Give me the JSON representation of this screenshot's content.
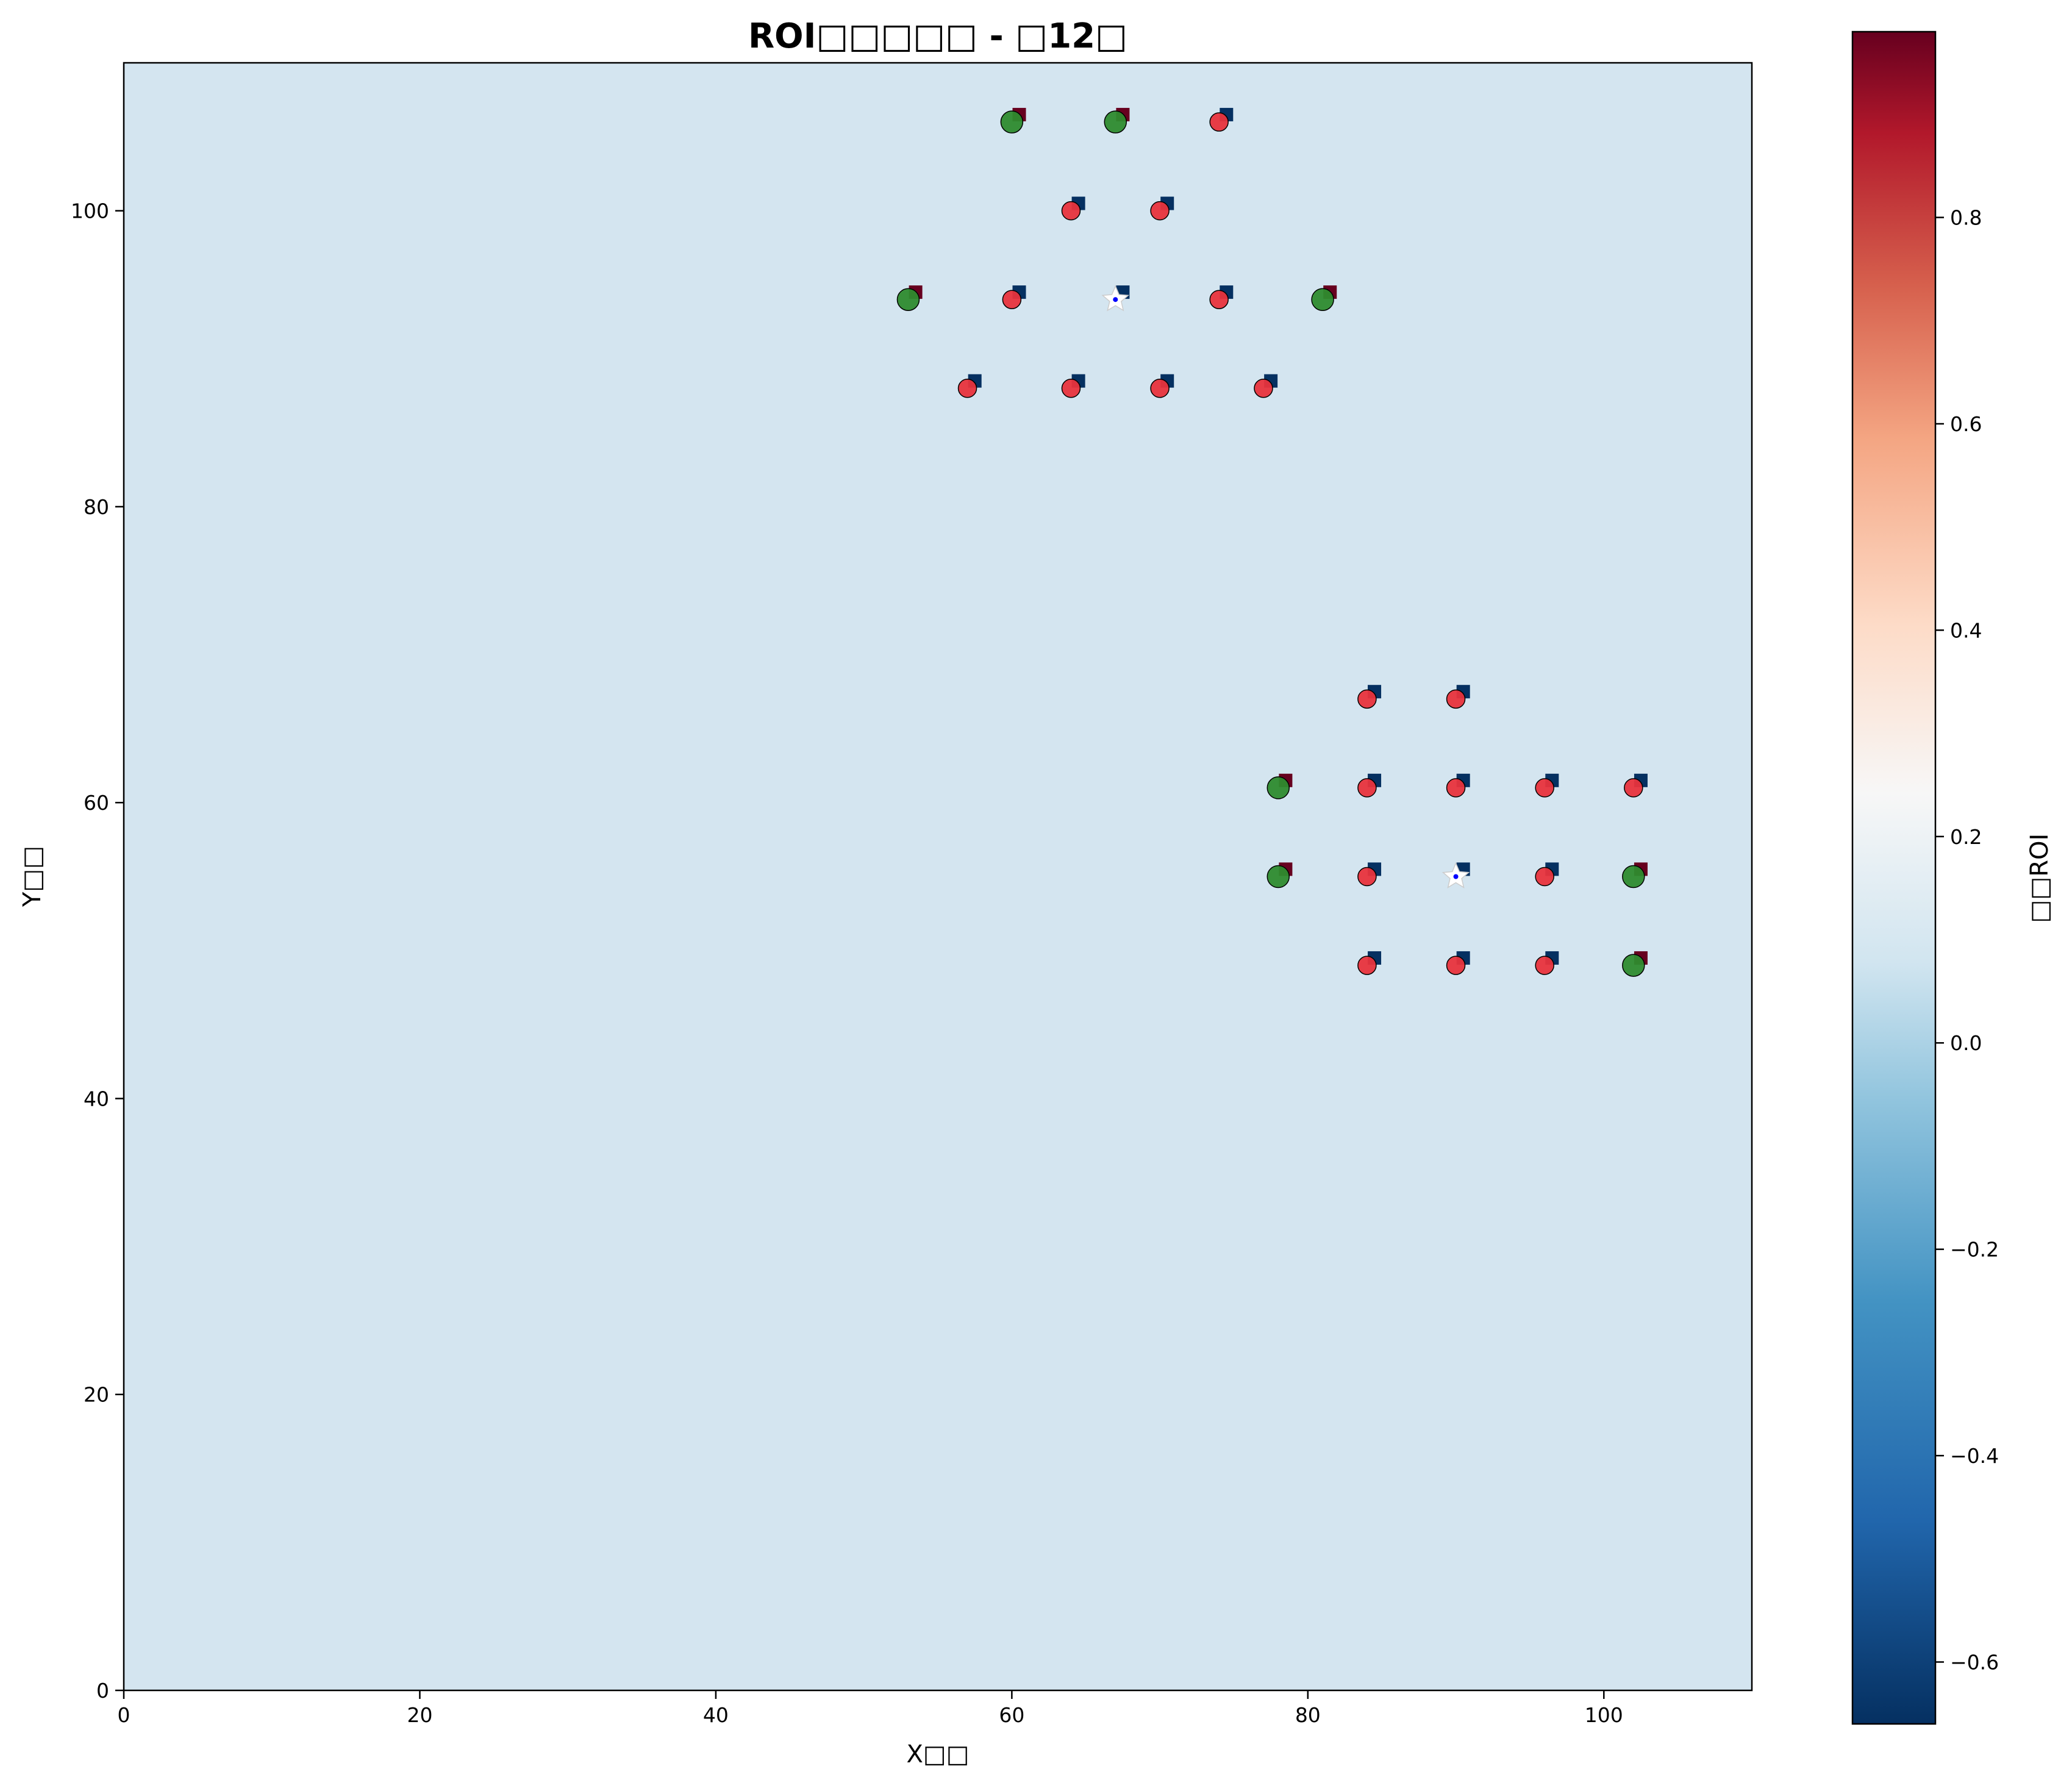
{
  "chart_data": {
    "type": "scatter",
    "title": "ROI□□□□□ - □12□",
    "xlabel": "X□□",
    "ylabel": "Y□□",
    "xlim": [
      0,
      110
    ],
    "ylim": [
      0,
      110
    ],
    "xticks": [
      "0",
      "20",
      "40",
      "60",
      "80",
      "100"
    ],
    "yticks": [
      "0",
      "20",
      "40",
      "60",
      "80",
      "100"
    ],
    "grid": false,
    "background_value": 0.0,
    "colorbar": {
      "label": "□□ROI",
      "range": [
        -0.66,
        0.98
      ],
      "ticks": [
        "−0.6",
        "−0.4",
        "−0.2",
        "0.0",
        "0.2",
        "0.4",
        "0.6",
        "0.8"
      ],
      "tick_values": [
        -0.6,
        -0.4,
        -0.2,
        0.0,
        0.2,
        0.4,
        0.6,
        0.8
      ],
      "colormap": "RdBu_r"
    },
    "colors": {
      "red_marker": "#e8333c",
      "green_marker": "#2e8b2e",
      "square_high_roi": "#67001f",
      "square_low_roi": "#053061",
      "star_fill": "#ffffff",
      "star_center": "#0000ff",
      "background": "#d4e5f0"
    },
    "series": [
      {
        "marker": "circle-red",
        "points": [
          [
            74,
            106
          ],
          [
            64,
            100
          ],
          [
            70,
            100
          ],
          [
            60,
            94
          ],
          [
            74,
            94
          ],
          [
            57,
            88
          ],
          [
            64,
            88
          ],
          [
            70,
            88
          ],
          [
            77,
            88
          ],
          [
            84,
            67
          ],
          [
            90,
            67
          ],
          [
            84,
            61
          ],
          [
            90,
            61
          ],
          [
            96,
            61
          ],
          [
            102,
            61
          ],
          [
            84,
            55
          ],
          [
            96,
            55
          ],
          [
            84,
            49
          ],
          [
            90,
            49
          ],
          [
            96,
            49
          ]
        ]
      },
      {
        "marker": "circle-green",
        "points": [
          [
            60,
            106
          ],
          [
            67,
            106
          ],
          [
            53,
            94
          ],
          [
            81,
            94
          ],
          [
            78,
            61
          ],
          [
            78,
            55
          ],
          [
            102,
            55
          ],
          [
            102,
            49
          ]
        ]
      },
      {
        "marker": "star",
        "points": [
          [
            67,
            94
          ],
          [
            90,
            55
          ]
        ]
      },
      {
        "marker": "square",
        "points": [
          {
            "x": 60.5,
            "y": 106.5,
            "roi": 0.98
          },
          {
            "x": 67.5,
            "y": 106.5,
            "roi": 0.98
          },
          {
            "x": 74.5,
            "y": 106.5,
            "roi": -0.66
          },
          {
            "x": 64.5,
            "y": 100.5,
            "roi": -0.66
          },
          {
            "x": 70.5,
            "y": 100.5,
            "roi": -0.66
          },
          {
            "x": 53.5,
            "y": 94.5,
            "roi": 0.98
          },
          {
            "x": 60.5,
            "y": 94.5,
            "roi": -0.66
          },
          {
            "x": 67.5,
            "y": 94.5,
            "roi": -0.66
          },
          {
            "x": 74.5,
            "y": 94.5,
            "roi": -0.66
          },
          {
            "x": 81.5,
            "y": 94.5,
            "roi": 0.98
          },
          {
            "x": 57.5,
            "y": 88.5,
            "roi": -0.66
          },
          {
            "x": 64.5,
            "y": 88.5,
            "roi": -0.66
          },
          {
            "x": 70.5,
            "y": 88.5,
            "roi": -0.66
          },
          {
            "x": 77.5,
            "y": 88.5,
            "roi": -0.66
          },
          {
            "x": 84.5,
            "y": 67.5,
            "roi": -0.66
          },
          {
            "x": 90.5,
            "y": 67.5,
            "roi": -0.66
          },
          {
            "x": 78.5,
            "y": 61.5,
            "roi": 0.98
          },
          {
            "x": 84.5,
            "y": 61.5,
            "roi": -0.66
          },
          {
            "x": 90.5,
            "y": 61.5,
            "roi": -0.66
          },
          {
            "x": 96.5,
            "y": 61.5,
            "roi": -0.66
          },
          {
            "x": 102.5,
            "y": 61.5,
            "roi": -0.66
          },
          {
            "x": 78.5,
            "y": 55.5,
            "roi": 0.98
          },
          {
            "x": 84.5,
            "y": 55.5,
            "roi": -0.66
          },
          {
            "x": 90.5,
            "y": 55.5,
            "roi": -0.66
          },
          {
            "x": 96.5,
            "y": 55.5,
            "roi": -0.66
          },
          {
            "x": 102.5,
            "y": 55.5,
            "roi": 0.98
          },
          {
            "x": 84.5,
            "y": 49.5,
            "roi": -0.66
          },
          {
            "x": 90.5,
            "y": 49.5,
            "roi": -0.66
          },
          {
            "x": 96.5,
            "y": 49.5,
            "roi": -0.66
          },
          {
            "x": 102.5,
            "y": 49.5,
            "roi": 0.98
          }
        ]
      }
    ]
  }
}
